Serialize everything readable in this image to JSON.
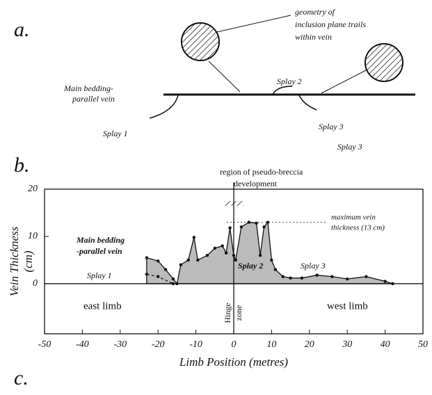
{
  "panel_a": {
    "label": "a.",
    "inset_note": [
      "geometry of",
      "inclusion plane trails",
      "within vein"
    ],
    "vein_label": [
      "Main bedding-",
      "parallel vein"
    ],
    "splays": [
      "Splay 1",
      "Splay 2",
      "Splay 3",
      "Splay 3"
    ]
  },
  "chart_data": {
    "type": "area",
    "panel_label": "b.",
    "x_label": "Limb Position (metres)",
    "y_label": [
      "Vein Thickness",
      "(cm)"
    ],
    "xlim": [
      -50,
      50
    ],
    "xticks": [
      -50,
      -40,
      -30,
      -20,
      -10,
      0,
      10,
      20,
      30,
      40,
      50
    ],
    "ylim": [
      -10.6,
      20
    ],
    "yticks": [
      0,
      10,
      20
    ],
    "series": [
      {
        "x": [
          -23,
          -20,
          -18,
          -16,
          -15,
          -14,
          -12,
          -10.5,
          -9.5,
          -7,
          -5,
          -3,
          -2,
          -1,
          0,
          0.5,
          2,
          4,
          6,
          7,
          8,
          9,
          10,
          11,
          13,
          15,
          18,
          22,
          26,
          30,
          35,
          40,
          42
        ],
        "values": [
          5.5,
          4.8,
          3,
          1,
          0,
          4,
          5,
          9.8,
          5,
          6,
          7.5,
          8,
          6.5,
          11.8,
          6,
          5,
          12,
          13,
          12.8,
          6,
          12,
          13,
          5,
          3,
          1.5,
          1.2,
          1.2,
          1.8,
          1.5,
          1,
          1.5,
          0.5,
          0
        ],
        "color": "#bbbbbb"
      },
      {
        "x": [
          -23,
          -20,
          -16
        ],
        "values": [
          2,
          1.5,
          0
        ],
        "color": "#111111"
      }
    ],
    "annotations": {
      "breccia": [
        "region of pseudo-breccia",
        "development"
      ],
      "max": [
        "maximum vein",
        "thickness (13 cm)"
      ],
      "max_value": 13,
      "vein": [
        "Main bedding",
        "-parallel vein"
      ],
      "splay1": "Splay 1",
      "splay2": "Splay 2",
      "splay3": "Splay 3",
      "east": "east limb",
      "west": "west limb",
      "hinge": [
        "Hinge",
        "zone"
      ],
      "hinge_position": 0
    }
  },
  "panel_c_label": "c."
}
